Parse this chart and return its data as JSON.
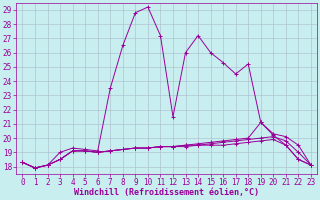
{
  "xlabel": "Windchill (Refroidissement éolien,°C)",
  "bg_color": "#c8eef0",
  "line_color": "#990099",
  "grid_color": "#aabbcc",
  "xlim": [
    -0.5,
    23.5
  ],
  "ylim": [
    17.5,
    29.5
  ],
  "yticks": [
    18,
    19,
    20,
    21,
    22,
    23,
    24,
    25,
    26,
    27,
    28,
    29
  ],
  "xticks": [
    0,
    1,
    2,
    3,
    4,
    5,
    6,
    7,
    8,
    9,
    10,
    11,
    12,
    13,
    14,
    15,
    16,
    17,
    18,
    19,
    20,
    21,
    22,
    23
  ],
  "series": [
    [
      18.3,
      17.9,
      18.1,
      19.0,
      19.3,
      19.2,
      19.1,
      23.5,
      26.5,
      28.8,
      29.2,
      27.2,
      21.5,
      26.0,
      27.2,
      26.0,
      25.3,
      24.5,
      25.2,
      21.1,
      20.2,
      19.5,
      18.5,
      18.1
    ],
    [
      18.3,
      17.9,
      18.1,
      18.5,
      19.1,
      19.1,
      19.0,
      19.1,
      19.2,
      19.3,
      19.3,
      19.4,
      19.4,
      19.5,
      19.6,
      19.7,
      19.8,
      19.9,
      20.0,
      21.1,
      20.3,
      20.1,
      19.5,
      18.1
    ],
    [
      18.3,
      17.9,
      18.1,
      18.5,
      19.1,
      19.1,
      19.0,
      19.1,
      19.2,
      19.3,
      19.3,
      19.4,
      19.4,
      19.5,
      19.5,
      19.6,
      19.7,
      19.8,
      19.9,
      20.0,
      20.1,
      19.8,
      19.0,
      18.1
    ],
    [
      18.3,
      17.9,
      18.1,
      18.5,
      19.1,
      19.1,
      19.0,
      19.1,
      19.2,
      19.3,
      19.3,
      19.4,
      19.4,
      19.4,
      19.5,
      19.5,
      19.5,
      19.6,
      19.7,
      19.8,
      19.9,
      19.5,
      18.5,
      18.1
    ]
  ],
  "tick_fontsize": 5.5,
  "xlabel_fontsize": 6,
  "figsize": [
    3.2,
    2.0
  ],
  "dpi": 100
}
